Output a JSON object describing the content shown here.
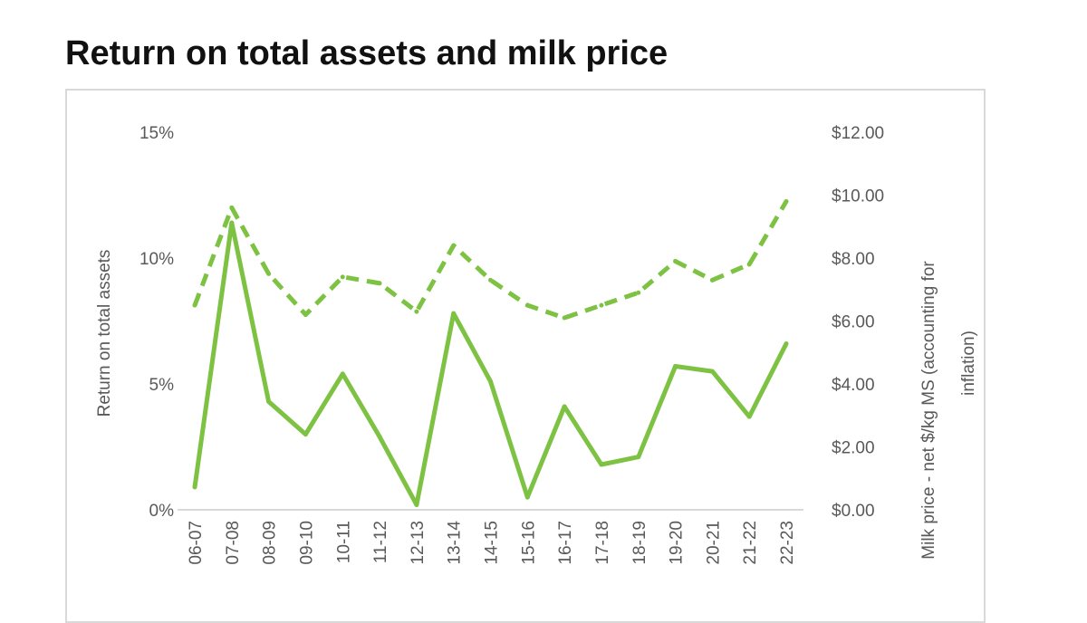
{
  "chart_data": {
    "type": "line",
    "title": "Return on total assets and milk price",
    "categories": [
      "06-07",
      "07-08",
      "08-09",
      "09-10",
      "10-11",
      "11-12",
      "12-13",
      "13-14",
      "14-15",
      "15-16",
      "16-17",
      "17-18",
      "18-19",
      "19-20",
      "20-21",
      "21-22",
      "22-23"
    ],
    "series": [
      {
        "axis": "left",
        "style": "solid",
        "color": "#7dc242",
        "values": [
          0.9,
          11.4,
          4.3,
          3.0,
          5.4,
          2.9,
          0.2,
          7.8,
          5.1,
          0.5,
          4.1,
          1.8,
          2.1,
          5.7,
          5.5,
          3.7,
          6.6
        ]
      },
      {
        "axis": "right",
        "style": "dashed",
        "color": "#7dc242",
        "values": [
          6.5,
          9.6,
          7.5,
          6.2,
          7.4,
          7.2,
          6.3,
          8.4,
          7.3,
          6.5,
          6.1,
          6.5,
          6.9,
          7.9,
          7.3,
          7.8,
          9.8
        ]
      }
    ],
    "ylabel": "Return on total assets",
    "ylim": [
      0,
      15
    ],
    "yticks": [
      "0%",
      "5%",
      "10%",
      "15%"
    ],
    "y2label_line1": "Milk price - net $/kg MS (accounting for",
    "y2label_line2": "inflation)",
    "y2lim": [
      0,
      12
    ],
    "y2ticks": [
      "$0.00",
      "$2.00",
      "$4.00",
      "$6.00",
      "$8.00",
      "$10.00",
      "$12.00"
    ],
    "grid": false,
    "legend": "none"
  }
}
